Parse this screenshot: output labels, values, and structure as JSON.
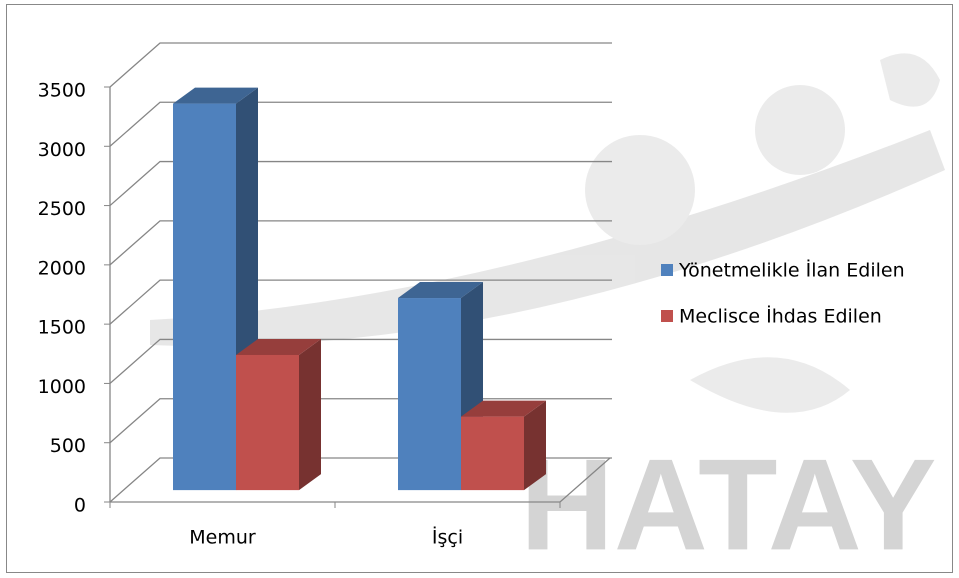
{
  "watermark": "HATAY",
  "chart_data": {
    "type": "bar3d",
    "categories": [
      "Memur",
      "İşçi"
    ],
    "series": [
      {
        "name": "Yönetmelikle İlan Edilen",
        "color": "#4f81bd",
        "values": [
          3260,
          1620
        ]
      },
      {
        "name": "Meclisce İhdas Edilen",
        "color": "#c0504d",
        "values": [
          1140,
          620
        ]
      }
    ],
    "ylim": [
      0,
      3500
    ],
    "yticks": [
      0,
      500,
      1000,
      1500,
      2000,
      2500,
      3000,
      3500
    ],
    "grid": true,
    "legend": "right"
  }
}
